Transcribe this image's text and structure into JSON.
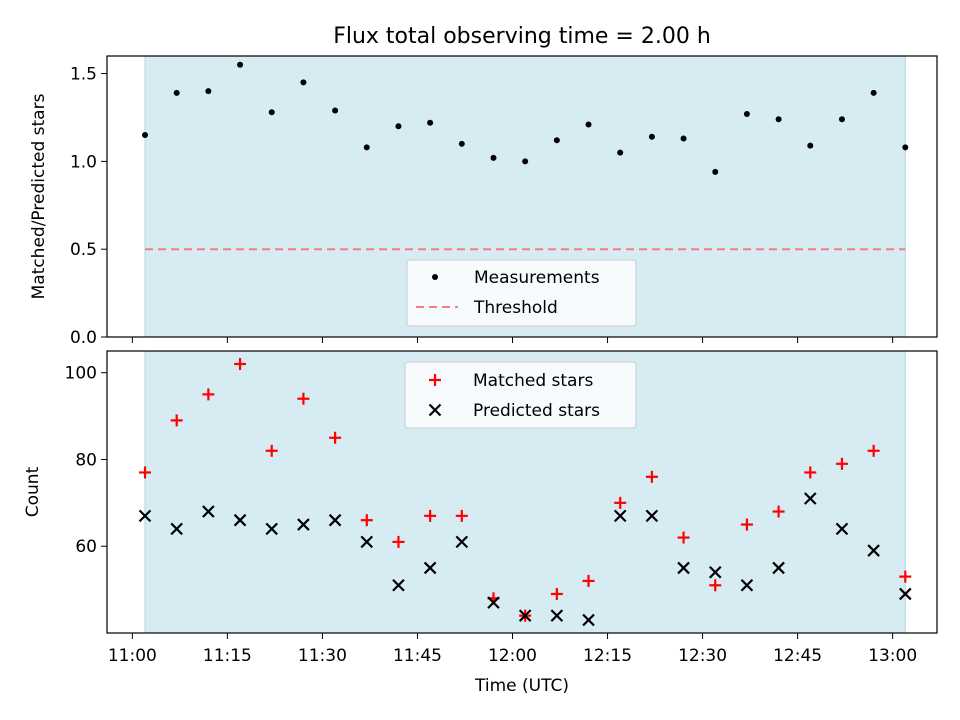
{
  "chart_data": [
    {
      "type": "scatter",
      "title": "Flux total observing time = 2.00 h",
      "xlabel": "",
      "ylabel": "Matched/Predicted stars",
      "xlim": [
        "10:56",
        "13:07"
      ],
      "ylim": [
        0,
        1.6
      ],
      "x_ticks": [
        "11:00",
        "11:15",
        "11:30",
        "11:45",
        "12:00",
        "12:15",
        "12:30",
        "12:45",
        "13:00"
      ],
      "x_ticklabels_visible": false,
      "y_ticks": [
        0.0,
        0.5,
        1.0,
        1.5
      ],
      "y_ticklabels": [
        "0.0",
        "0.5",
        "1.0",
        "1.5"
      ],
      "shaded_span": {
        "x": [
          "11:02",
          "13:02"
        ],
        "color": "#add8e6"
      },
      "x": [
        "11:02",
        "11:07",
        "11:12",
        "11:17",
        "11:22",
        "11:27",
        "11:32",
        "11:37",
        "11:42",
        "11:47",
        "11:52",
        "11:57",
        "12:02",
        "12:07",
        "12:12",
        "12:17",
        "12:22",
        "12:27",
        "12:32",
        "12:37",
        "12:42",
        "12:47",
        "12:52",
        "12:57",
        "13:02"
      ],
      "series": [
        {
          "name": "Measurements",
          "marker": "dot",
          "color": "#000000",
          "values": [
            1.15,
            1.39,
            1.4,
            1.55,
            1.28,
            1.45,
            1.29,
            1.08,
            1.2,
            1.22,
            1.1,
            1.02,
            1.0,
            1.12,
            1.21,
            1.05,
            1.14,
            1.13,
            0.94,
            1.27,
            1.24,
            1.09,
            1.24,
            1.39,
            1.08
          ]
        },
        {
          "name": "Threshold",
          "marker": "dashed-line",
          "color": "#f08080",
          "x": [
            "11:02",
            "13:02"
          ],
          "values": [
            0.5,
            0.5
          ]
        }
      ],
      "legend": "lower-center"
    },
    {
      "type": "scatter",
      "title": "",
      "xlabel": "Time (UTC)",
      "ylabel": "Count",
      "xlim": [
        "10:56",
        "13:07"
      ],
      "ylim": [
        40,
        105
      ],
      "x_ticks": [
        "11:00",
        "11:15",
        "11:30",
        "11:45",
        "12:00",
        "12:15",
        "12:30",
        "12:45",
        "13:00"
      ],
      "x_ticklabels": [
        "11:00",
        "11:15",
        "11:30",
        "11:45",
        "12:00",
        "12:15",
        "12:30",
        "12:45",
        "13:00"
      ],
      "y_ticks": [
        60,
        80,
        100
      ],
      "y_ticklabels": [
        "60",
        "80",
        "100"
      ],
      "shaded_span": {
        "x": [
          "11:02",
          "13:02"
        ],
        "color": "#add8e6"
      },
      "x": [
        "11:02",
        "11:07",
        "11:12",
        "11:17",
        "11:22",
        "11:27",
        "11:32",
        "11:37",
        "11:42",
        "11:47",
        "11:52",
        "11:57",
        "12:02",
        "12:07",
        "12:12",
        "12:17",
        "12:22",
        "12:27",
        "12:32",
        "12:37",
        "12:42",
        "12:47",
        "12:52",
        "12:57",
        "13:02"
      ],
      "series": [
        {
          "name": "Matched stars",
          "marker": "plus",
          "color": "#ff0000",
          "values": [
            77,
            89,
            95,
            102,
            82,
            94,
            85,
            66,
            61,
            67,
            67,
            48,
            44,
            49,
            52,
            70,
            76,
            62,
            51,
            65,
            68,
            77,
            79,
            82,
            53
          ]
        },
        {
          "name": "Predicted stars",
          "marker": "x",
          "color": "#000000",
          "values": [
            67,
            64,
            68,
            66,
            64,
            65,
            66,
            61,
            51,
            55,
            61,
            47,
            44,
            44,
            43,
            67,
            67,
            55,
            54,
            51,
            55,
            71,
            64,
            59,
            49
          ]
        }
      ],
      "legend": "upper-center"
    }
  ]
}
